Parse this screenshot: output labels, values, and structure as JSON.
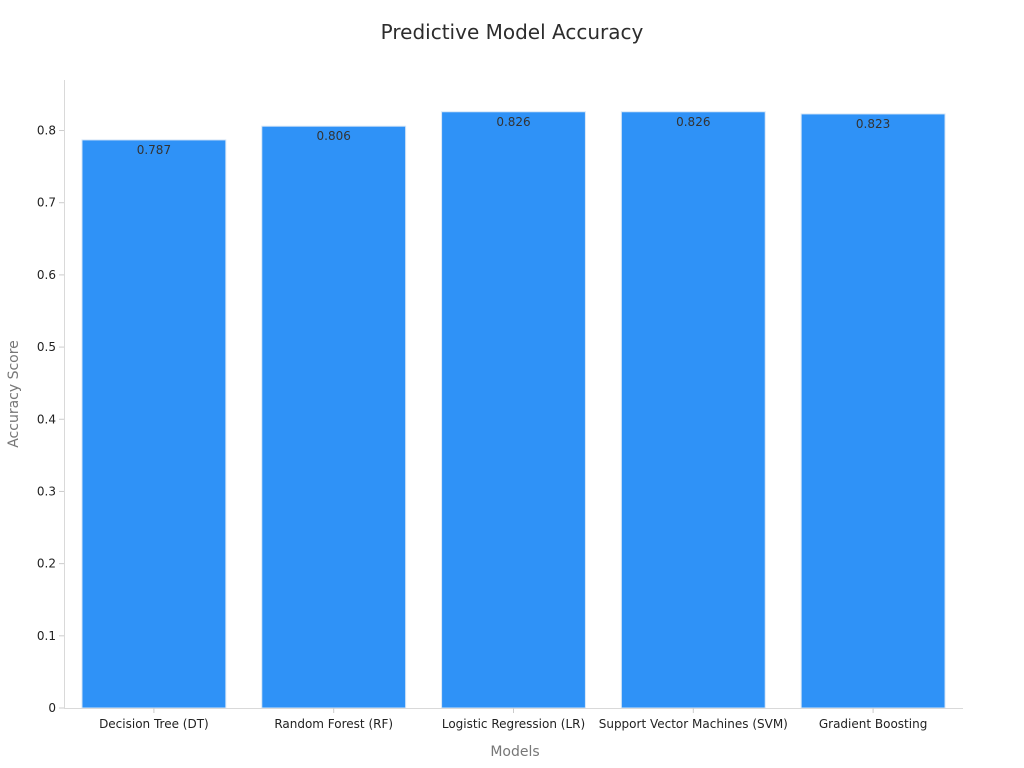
{
  "chart_data": {
    "type": "bar",
    "title": "Predictive Model Accuracy",
    "xlabel": "Models",
    "ylabel": "Accuracy Score",
    "categories": [
      "Decision Tree (DT)",
      "Random Forest (RF)",
      "Logistic Regression (LR)",
      "Support Vector Machines (SVM)",
      "Gradient Boosting"
    ],
    "values": [
      0.787,
      0.806,
      0.826,
      0.826,
      0.823
    ],
    "data_labels": [
      "0.787",
      "0.806",
      "0.826",
      "0.826",
      "0.823"
    ],
    "ylim": [
      0,
      0.87
    ],
    "yticks": [
      0,
      0.1,
      0.2,
      0.3,
      0.4,
      0.5,
      0.6,
      0.7,
      0.8
    ],
    "ytick_labels": [
      "0",
      "0.1",
      "0.2",
      "0.3",
      "0.4",
      "0.5",
      "0.6",
      "0.7",
      "0.8"
    ],
    "grid": false,
    "legend": "none",
    "bar_color": "#2f92f7"
  }
}
